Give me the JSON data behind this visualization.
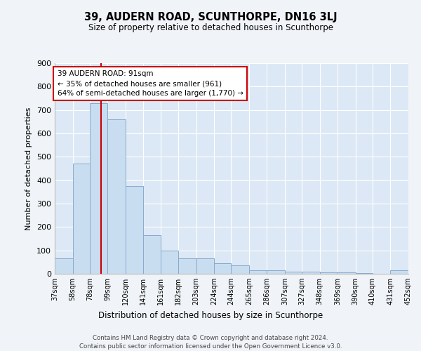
{
  "title": "39, AUDERN ROAD, SCUNTHORPE, DN16 3LJ",
  "subtitle": "Size of property relative to detached houses in Scunthorpe",
  "xlabel": "Distribution of detached houses by size in Scunthorpe",
  "ylabel": "Number of detached properties",
  "bar_color": "#c9ddf0",
  "bar_edge_color": "#88aacc",
  "background_color": "#dce8f5",
  "grid_color": "#ffffff",
  "vline_x": 91,
  "vline_color": "#cc0000",
  "annotation_text": "39 AUDERN ROAD: 91sqm\n← 35% of detached houses are smaller (961)\n64% of semi-detached houses are larger (1,770) →",
  "annotation_box_facecolor": "#ffffff",
  "annotation_box_edge": "#cc0000",
  "bins": [
    37,
    58,
    78,
    99,
    120,
    141,
    161,
    182,
    203,
    224,
    244,
    265,
    286,
    307,
    327,
    348,
    369,
    390,
    410,
    431,
    452
  ],
  "bin_labels": [
    "37sqm",
    "58sqm",
    "78sqm",
    "99sqm",
    "120sqm",
    "141sqm",
    "161sqm",
    "182sqm",
    "203sqm",
    "224sqm",
    "244sqm",
    "265sqm",
    "286sqm",
    "307sqm",
    "327sqm",
    "348sqm",
    "369sqm",
    "390sqm",
    "410sqm",
    "431sqm",
    "452sqm"
  ],
  "bar_heights": [
    65,
    470,
    730,
    660,
    375,
    165,
    100,
    65,
    65,
    45,
    35,
    15,
    15,
    10,
    10,
    5,
    5,
    2,
    1,
    15
  ],
  "ylim": [
    0,
    900
  ],
  "yticks": [
    0,
    100,
    200,
    300,
    400,
    500,
    600,
    700,
    800,
    900
  ],
  "footer1": "Contains HM Land Registry data © Crown copyright and database right 2024.",
  "footer2": "Contains public sector information licensed under the Open Government Licence v3.0.",
  "fig_width": 6.0,
  "fig_height": 5.0,
  "fig_bg": "#f0f4f8"
}
